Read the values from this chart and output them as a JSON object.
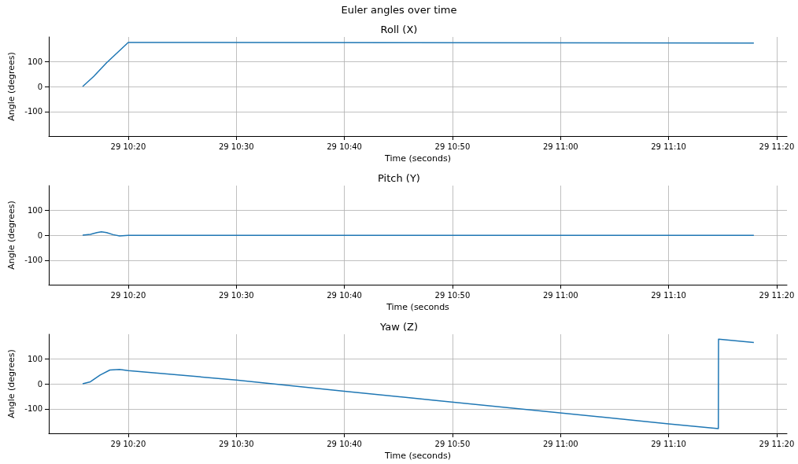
{
  "chart_data": [
    {
      "type": "line",
      "annotations": [
        "Euler angles over time"
      ],
      "title": "Roll (X)",
      "xlabel": "Time (seconds)",
      "ylabel": "Angle (degrees)",
      "color": "#1f77b4",
      "grid": true,
      "x": [
        "--01-29T10:15:47",
        "--01-29T10:16:48",
        "--01-29T10:18:00",
        "--01-29T10:20:00",
        "--01-29T11:17:53"
      ],
      "values": [
        0,
        40,
        95,
        176,
        174
      ],
      "xlim": [
        "--01-29T10:12:39",
        "--01-29T11:20:57"
      ],
      "xticks": [
        {
          "value": "--01-29T10:20",
          "label": "29 10:20"
        },
        {
          "value": "--01-29T10:30",
          "label": "29 10:30"
        },
        {
          "value": "--01-29T10:40",
          "label": "29 10:40"
        },
        {
          "value": "--01-29T10:50",
          "label": "29 10:50"
        },
        {
          "value": "--01-29T11:00",
          "label": "29 11:00"
        },
        {
          "value": "--01-29T11:10",
          "label": "29 11:10"
        },
        {
          "value": "--01-29T11:20",
          "label": "29 11:20"
        }
      ],
      "ylim": [
        -198,
        198
      ],
      "yticks": [
        -100,
        0,
        100
      ]
    },
    {
      "type": "line",
      "title": "Pitch (Y)",
      "xlabel": "Time (seconds",
      "ylabel": "Angle (degrees)",
      "color": "#1f77b4",
      "grid": true,
      "x": [
        "--01-29T10:15:47",
        "--01-29T10:16:30",
        "--01-29T10:17:06",
        "--01-29T10:17:31",
        "--01-29T10:18:00",
        "--01-29T10:18:36",
        "--01-29T10:19:12",
        "--01-29T10:20:00",
        "--01-29T11:17:53"
      ],
      "values": [
        0,
        3,
        10,
        13,
        10,
        2,
        -3,
        -1,
        -1
      ],
      "xlim": [
        "--01-29T10:12:39",
        "--01-29T11:20:57"
      ],
      "xticks": [
        {
          "value": "--01-29T10:20",
          "label": "29 10:20"
        },
        {
          "value": "--01-29T10:30",
          "label": "29 10:30"
        },
        {
          "value": "--01-29T10:40",
          "label": "29 10:40"
        },
        {
          "value": "--01-29T10:50",
          "label": "29 10:50"
        },
        {
          "value": "--01-29T11:00",
          "label": "29 11:00"
        },
        {
          "value": "--01-29T11:10",
          "label": "29 11:10"
        },
        {
          "value": "--01-29T11:20",
          "label": "29 11:20"
        }
      ],
      "ylim": [
        -198,
        198
      ],
      "yticks": [
        -100,
        0,
        100
      ]
    },
    {
      "type": "line",
      "title": "Yaw (Z)",
      "xlabel": "Time (seconds)",
      "ylabel": "Angle (degrees)",
      "color": "#1f77b4",
      "grid": true,
      "x": [
        "--01-29T10:15:47",
        "--01-29T10:16:30",
        "--01-29T10:17:24",
        "--01-29T10:18:18",
        "--01-29T10:19:12",
        "--01-29T10:20:00",
        "--01-29T10:30:00",
        "--01-29T10:40:00",
        "--01-29T11:10:00",
        "--01-29T11:14:36",
        "--01-29T11:14:37",
        "--01-29T11:17:53"
      ],
      "values": [
        0,
        8,
        35,
        55,
        57,
        53,
        15,
        -30,
        -160,
        -179,
        178,
        165
      ],
      "xlim": [
        "--01-29T10:12:39",
        "--01-29T11:20:57"
      ],
      "xticks": [
        {
          "value": "--01-29T10:20",
          "label": "29 10:20"
        },
        {
          "value": "--01-29T10:30",
          "label": "29 10:30"
        },
        {
          "value": "--01-29T10:40",
          "label": "29 10:40"
        },
        {
          "value": "--01-29T10:50",
          "label": "29 10:50"
        },
        {
          "value": "--01-29T11:00",
          "label": "29 11:00"
        },
        {
          "value": "--01-29T11:10",
          "label": "29 11:10"
        },
        {
          "value": "--01-29T11:20",
          "label": "29 11:20"
        }
      ],
      "ylim": [
        -198,
        198
      ],
      "yticks": [
        -100,
        0,
        100
      ]
    }
  ]
}
